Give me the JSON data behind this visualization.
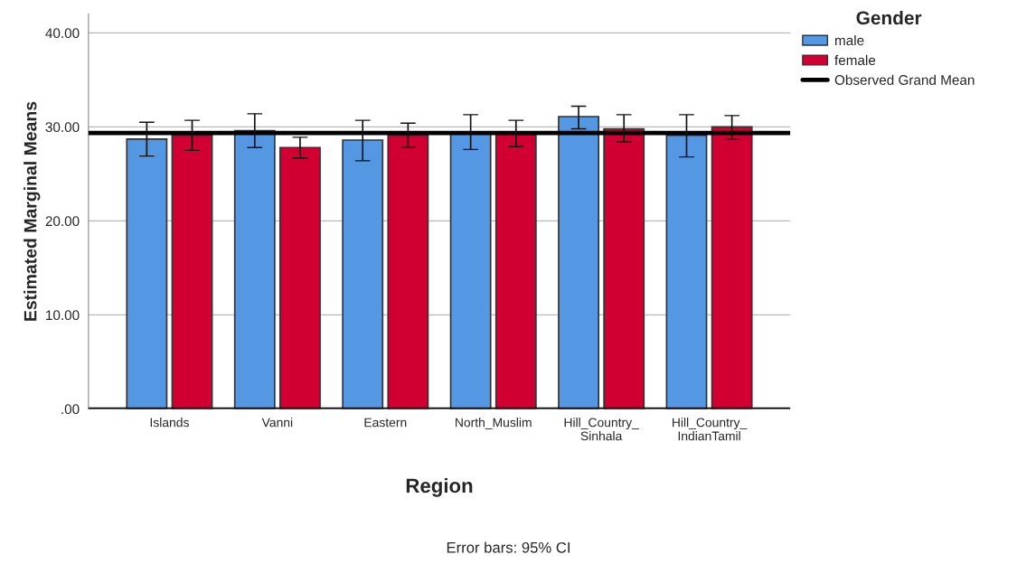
{
  "chart_data": {
    "type": "bar",
    "xlabel": "Region",
    "ylabel": "Estimated Marginal Means",
    "legend_title": "Gender",
    "categories": [
      "Islands",
      "Vanni",
      "Eastern",
      "North_Muslim",
      "Hill_Country_\nSinhala",
      "Hill_Country_\nIndianTamil"
    ],
    "series": [
      {
        "name": "male",
        "color": "#5497e3",
        "values": [
          28.7,
          29.6,
          28.6,
          29.4,
          31.1,
          29.1
        ],
        "errors": [
          [
            26.9,
            30.5
          ],
          [
            27.8,
            31.4
          ],
          [
            26.4,
            30.7
          ],
          [
            27.6,
            31.3
          ],
          [
            29.8,
            32.2
          ],
          [
            26.8,
            31.3
          ]
        ]
      },
      {
        "name": "female",
        "color": "#d20032",
        "values": [
          29.1,
          27.8,
          29.1,
          29.2,
          29.8,
          30.0
        ],
        "errors": [
          [
            27.5,
            30.7
          ],
          [
            26.7,
            28.9
          ],
          [
            27.8,
            30.4
          ],
          [
            27.9,
            30.7
          ],
          [
            28.4,
            31.3
          ],
          [
            28.7,
            31.2
          ]
        ]
      }
    ],
    "ref_lines": [
      {
        "axis": "y",
        "value": 29.36,
        "label": "Observed Grand Mean",
        "color": "#000000"
      }
    ],
    "ylim": [
      0,
      42
    ],
    "yticks": [
      {
        "value": 0,
        "label": ".00"
      },
      {
        "value": 10,
        "label": "10.00"
      },
      {
        "value": 20,
        "label": "20.00"
      },
      {
        "value": 30,
        "label": "30.00"
      },
      {
        "value": 40,
        "label": "40.00"
      }
    ],
    "grid": "y",
    "legend": "top right",
    "annotations": [
      "Error bars: 95% CI"
    ]
  }
}
